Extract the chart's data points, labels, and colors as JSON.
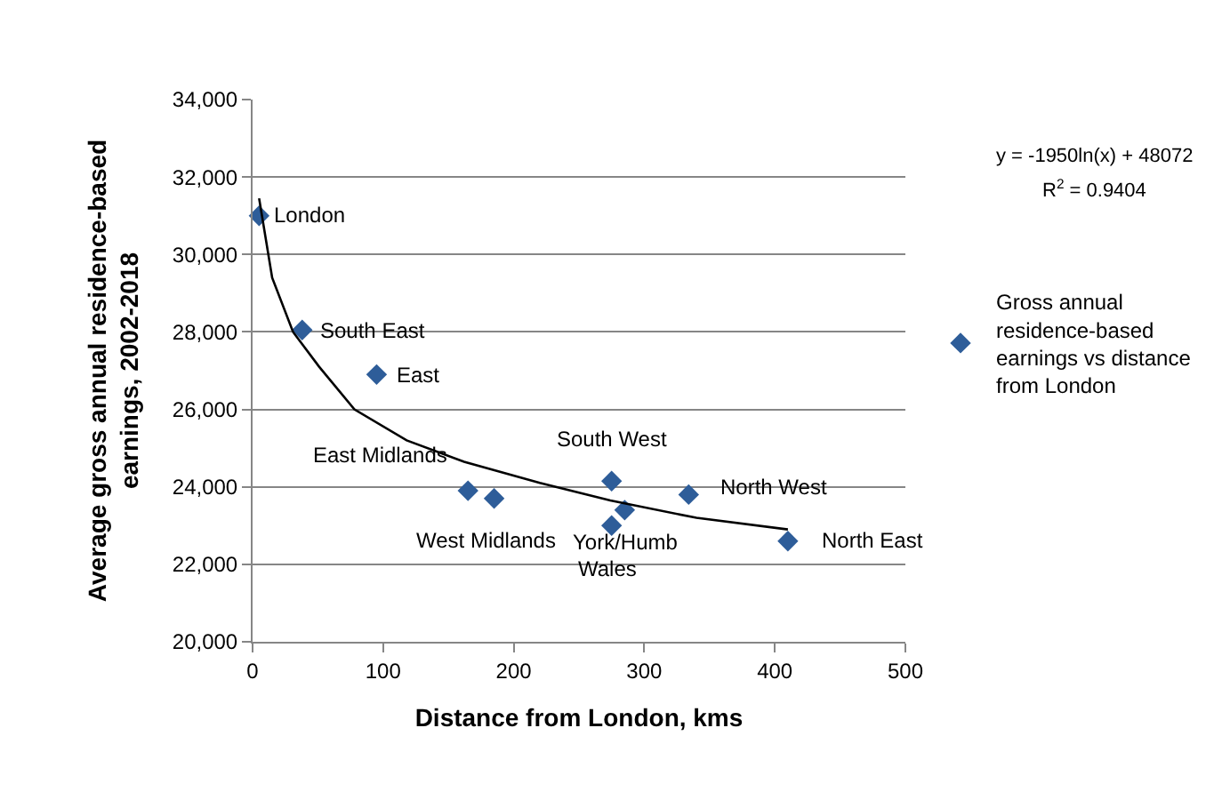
{
  "chart_data": {
    "type": "scatter",
    "xlabel": "Distance from London, kms",
    "ylabel": "Average gross annual residence-based earnings, 2002-2018",
    "series": [
      {
        "name": "Gross annual residence-based earnings vs distance from London",
        "color": "#2e5d99",
        "x": [
          5,
          38,
          95,
          165,
          185,
          275,
          275,
          285,
          334,
          410
        ],
        "values": [
          31000,
          28050,
          26900,
          23900,
          23700,
          24150,
          23000,
          23400,
          23800,
          22600
        ],
        "marker": "diamond"
      },
      {
        "type": "line",
        "color": "#000000",
        "x": [
          5,
          15,
          31,
          51,
          78,
          118,
          162,
          220,
          274,
          340,
          410
        ],
        "values": [
          31450,
          29400,
          28000,
          27100,
          26000,
          25200,
          24650,
          24100,
          23650,
          23200,
          22900
        ],
        "marker": "none"
      }
    ],
    "annotations": [
      {
        "text": "London",
        "x": 5,
        "y": 31000
      },
      {
        "text": "South East",
        "x": 38,
        "y": 28050
      },
      {
        "text": "East",
        "x": 95,
        "y": 26900
      },
      {
        "text": "East Midlands",
        "x": 165,
        "y": 23900
      },
      {
        "text": "West Midlands",
        "x": 185,
        "y": 23700
      },
      {
        "text": "South West",
        "x": 275,
        "y": 24150
      },
      {
        "text": "Wales",
        "x": 275,
        "y": 23000
      },
      {
        "text": "York/Humb",
        "x": 285,
        "y": 23400
      },
      {
        "text": "North West",
        "x": 334,
        "y": 23800
      },
      {
        "text": "North East",
        "x": 410,
        "y": 22600
      },
      "y = -1950ln(x) + 48072",
      "R$^{2}$ = 0.9404"
    ],
    "xlim": [
      0,
      500
    ],
    "xticks": [
      0,
      100,
      200,
      300,
      400,
      500
    ],
    "ylim": [
      20000,
      34000
    ],
    "yticks": [
      {
        "value": 20000,
        "label": "20,000"
      },
      {
        "value": 22000,
        "label": "22,000"
      },
      {
        "value": 24000,
        "label": "24,000"
      },
      {
        "value": 26000,
        "label": "26,000"
      },
      {
        "value": 28000,
        "label": "28,000"
      },
      {
        "value": 30000,
        "label": "30,000"
      },
      {
        "value": 32000,
        "label": "32,000"
      },
      {
        "value": 34000,
        "label": "34,000"
      }
    ],
    "grid": "y",
    "legend": "right"
  }
}
